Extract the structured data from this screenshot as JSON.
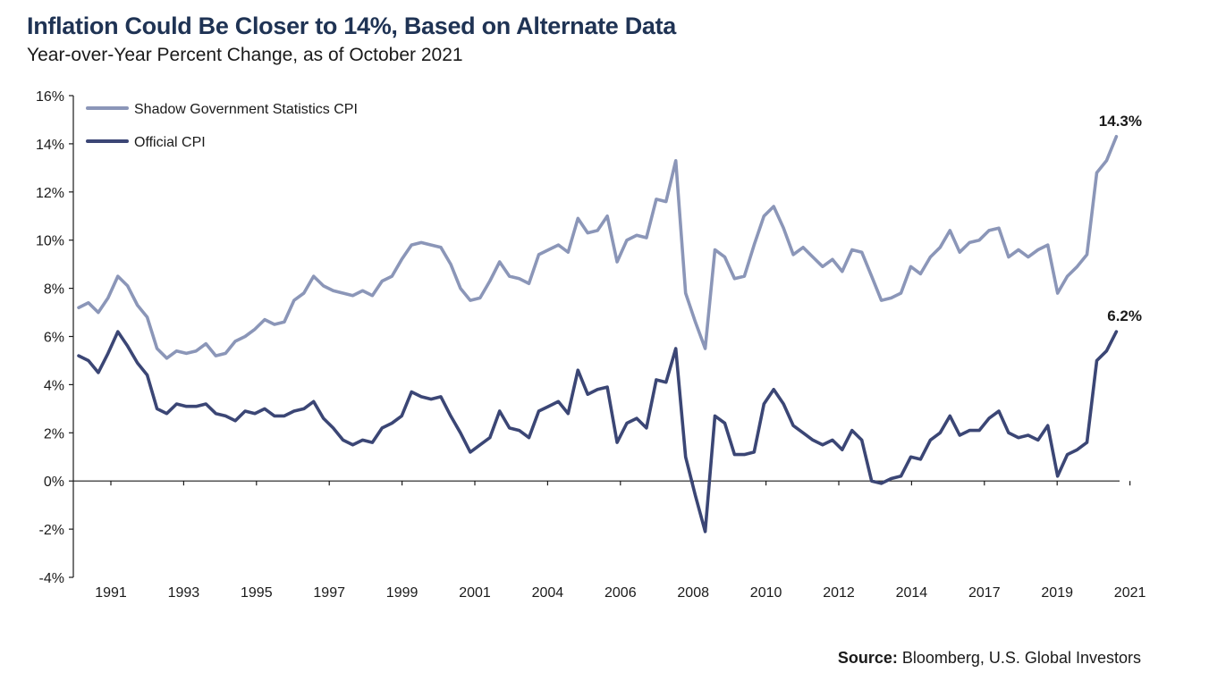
{
  "header": {
    "title": "Inflation Could Be Closer to 14%, Based on Alternate Data",
    "subtitle": "Year-over-Year Percent Change, as of October 2021"
  },
  "source": {
    "label": "Source:",
    "text": " Bloomberg, U.S. Global Investors"
  },
  "colors": {
    "shadow": "#8b96b8",
    "official": "#3b4675",
    "axis": "#1a1a1a"
  },
  "chart_data": {
    "type": "line",
    "title": "Inflation Could Be Closer to 14%, Based on Alternate Data",
    "subtitle": "Year-over-Year Percent Change, as of October 2021",
    "x_tick_labels": [
      "1991",
      "1993",
      "1995",
      "1997",
      "1999",
      "2001",
      "2004",
      "2006",
      "2008",
      "2010",
      "2012",
      "2014",
      "2017",
      "2019",
      "2021"
    ],
    "y_tick_labels": [
      "16%",
      "14%",
      "12%",
      "10%",
      "8%",
      "6%",
      "4%",
      "2%",
      "0%",
      "-2%",
      "-4%"
    ],
    "xlim": [
      1990.0,
      2021.9
    ],
    "ylim": [
      -4,
      16
    ],
    "grid": false,
    "legend": "top-left",
    "series": [
      {
        "name": "Shadow Government Statistics CPI",
        "x": [
          1990.0,
          1990.3,
          1990.6,
          1990.9,
          1991.2,
          1991.5,
          1991.8,
          1992.1,
          1992.4,
          1992.7,
          1993.0,
          1993.3,
          1993.6,
          1993.9,
          1994.2,
          1994.5,
          1994.8,
          1995.1,
          1995.4,
          1995.7,
          1996.0,
          1996.3,
          1996.6,
          1996.9,
          1997.2,
          1997.5,
          1997.8,
          1998.1,
          1998.4,
          1998.7,
          1999.0,
          1999.3,
          1999.6,
          1999.9,
          2000.2,
          2000.5,
          2000.8,
          2001.1,
          2001.4,
          2001.7,
          2002.0,
          2002.3,
          2002.6,
          2002.9,
          2003.2,
          2003.5,
          2003.8,
          2004.1,
          2004.4,
          2004.7,
          2005.0,
          2005.3,
          2005.6,
          2005.9,
          2006.2,
          2006.5,
          2006.8,
          2007.1,
          2007.4,
          2007.7,
          2008.0,
          2008.3,
          2008.6,
          2008.9,
          2009.2,
          2009.5,
          2009.8,
          2010.1,
          2010.4,
          2010.7,
          2011.0,
          2011.3,
          2011.6,
          2011.9,
          2012.2,
          2012.5,
          2012.8,
          2013.1,
          2013.4,
          2013.7,
          2014.0,
          2014.3,
          2014.6,
          2014.9,
          2015.2,
          2015.5,
          2015.8,
          2016.1,
          2016.4,
          2016.7,
          2017.0,
          2017.3,
          2017.6,
          2017.9,
          2018.2,
          2018.5,
          2018.8,
          2019.1,
          2019.4,
          2019.7,
          2020.0,
          2020.3,
          2020.6,
          2020.9,
          2021.2,
          2021.5,
          2021.8
        ],
        "values": [
          7.2,
          7.4,
          7.0,
          7.6,
          8.5,
          8.1,
          7.3,
          6.8,
          5.5,
          5.1,
          5.4,
          5.3,
          5.4,
          5.7,
          5.2,
          5.3,
          5.8,
          6.0,
          6.3,
          6.7,
          6.5,
          6.6,
          7.5,
          7.8,
          8.5,
          8.1,
          7.9,
          7.8,
          7.7,
          7.9,
          7.7,
          8.3,
          8.5,
          9.2,
          9.8,
          9.9,
          9.8,
          9.7,
          9.0,
          8.0,
          7.5,
          7.6,
          8.3,
          9.1,
          8.5,
          8.4,
          8.2,
          9.4,
          9.6,
          9.8,
          9.5,
          10.9,
          10.3,
          10.4,
          11.0,
          9.1,
          10.0,
          10.2,
          10.1,
          11.7,
          11.6,
          13.3,
          7.8,
          6.6,
          5.5,
          9.6,
          9.3,
          8.4,
          8.5,
          9.8,
          11.0,
          11.4,
          10.5,
          9.4,
          9.7,
          9.3,
          8.9,
          9.2,
          8.7,
          9.6,
          9.5,
          8.5,
          7.5,
          7.6,
          7.8,
          8.9,
          8.6,
          9.3,
          9.7,
          10.4,
          9.5,
          9.9,
          10.0,
          10.4,
          10.5,
          9.3,
          9.6,
          9.3,
          9.6,
          9.8,
          7.8,
          8.5,
          8.9,
          9.4,
          12.8,
          13.3,
          14.3
        ]
      },
      {
        "name": "Official CPI",
        "x": [
          1990.0,
          1990.3,
          1990.6,
          1990.9,
          1991.2,
          1991.5,
          1991.8,
          1992.1,
          1992.4,
          1992.7,
          1993.0,
          1993.3,
          1993.6,
          1993.9,
          1994.2,
          1994.5,
          1994.8,
          1995.1,
          1995.4,
          1995.7,
          1996.0,
          1996.3,
          1996.6,
          1996.9,
          1997.2,
          1997.5,
          1997.8,
          1998.1,
          1998.4,
          1998.7,
          1999.0,
          1999.3,
          1999.6,
          1999.9,
          2000.2,
          2000.5,
          2000.8,
          2001.1,
          2001.4,
          2001.7,
          2002.0,
          2002.3,
          2002.6,
          2002.9,
          2003.2,
          2003.5,
          2003.8,
          2004.1,
          2004.4,
          2004.7,
          2005.0,
          2005.3,
          2005.6,
          2005.9,
          2006.2,
          2006.5,
          2006.8,
          2007.1,
          2007.4,
          2007.7,
          2008.0,
          2008.3,
          2008.6,
          2008.9,
          2009.2,
          2009.5,
          2009.8,
          2010.1,
          2010.4,
          2010.7,
          2011.0,
          2011.3,
          2011.6,
          2011.9,
          2012.2,
          2012.5,
          2012.8,
          2013.1,
          2013.4,
          2013.7,
          2014.0,
          2014.3,
          2014.6,
          2014.9,
          2015.2,
          2015.5,
          2015.8,
          2016.1,
          2016.4,
          2016.7,
          2017.0,
          2017.3,
          2017.6,
          2017.9,
          2018.2,
          2018.5,
          2018.8,
          2019.1,
          2019.4,
          2019.7,
          2020.0,
          2020.3,
          2020.6,
          2020.9,
          2021.2,
          2021.5,
          2021.8
        ],
        "values": [
          5.2,
          5.0,
          4.5,
          5.3,
          6.2,
          5.6,
          4.9,
          4.4,
          3.0,
          2.8,
          3.2,
          3.1,
          3.1,
          3.2,
          2.8,
          2.7,
          2.5,
          2.9,
          2.8,
          3.0,
          2.7,
          2.7,
          2.9,
          3.0,
          3.3,
          2.6,
          2.2,
          1.7,
          1.5,
          1.7,
          1.6,
          2.2,
          2.4,
          2.7,
          3.7,
          3.5,
          3.4,
          3.5,
          2.7,
          2.0,
          1.2,
          1.5,
          1.8,
          2.9,
          2.2,
          2.1,
          1.8,
          2.9,
          3.1,
          3.3,
          2.8,
          4.6,
          3.6,
          3.8,
          3.9,
          1.6,
          2.4,
          2.6,
          2.2,
          4.2,
          4.1,
          5.5,
          1.0,
          -0.6,
          -2.1,
          2.7,
          2.4,
          1.1,
          1.1,
          1.2,
          3.2,
          3.8,
          3.2,
          2.3,
          2.0,
          1.7,
          1.5,
          1.7,
          1.3,
          2.1,
          1.7,
          0.0,
          -0.1,
          0.1,
          0.2,
          1.0,
          0.9,
          1.7,
          2.0,
          2.7,
          1.9,
          2.1,
          2.1,
          2.6,
          2.9,
          2.0,
          1.8,
          1.9,
          1.7,
          2.3,
          0.2,
          1.1,
          1.3,
          1.6,
          5.0,
          5.4,
          6.2
        ]
      }
    ],
    "annotations": [
      {
        "series": "Shadow Government Statistics CPI",
        "x": 2021.8,
        "y": 14.3,
        "text": "14.3%"
      },
      {
        "series": "Official CPI",
        "x": 2021.8,
        "y": 6.2,
        "text": "6.2%"
      }
    ]
  }
}
